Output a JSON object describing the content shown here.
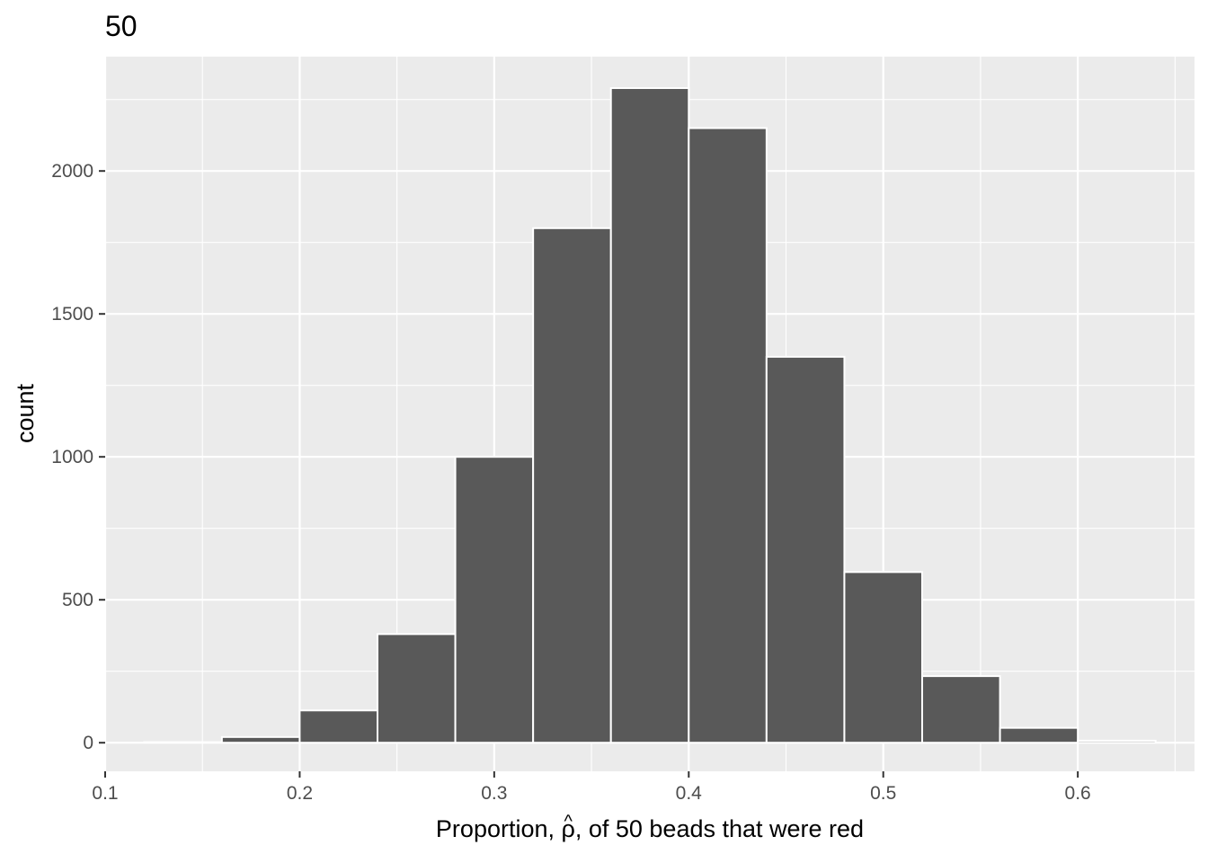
{
  "chart_data": {
    "type": "bar",
    "title": "50",
    "xlabel": {
      "before": "Proportion, ",
      "symbol": "ρ",
      "hat": "^",
      "after": ", of 50 beads that were red"
    },
    "ylabel": "count",
    "xlim": [
      0.1,
      0.66
    ],
    "ylim": [
      -100,
      2400
    ],
    "x_ticks": [
      {
        "value": 0.1,
        "label": "0.1"
      },
      {
        "value": 0.2,
        "label": "0.2"
      },
      {
        "value": 0.3,
        "label": "0.3"
      },
      {
        "value": 0.4,
        "label": "0.4"
      },
      {
        "value": 0.5,
        "label": "0.5"
      },
      {
        "value": 0.6,
        "label": "0.6"
      }
    ],
    "y_ticks": [
      {
        "value": 0,
        "label": "0"
      },
      {
        "value": 500,
        "label": "500"
      },
      {
        "value": 1000,
        "label": "1000"
      },
      {
        "value": 1500,
        "label": "1500"
      },
      {
        "value": 2000,
        "label": "2000"
      }
    ],
    "bins": [
      {
        "start": 0.12,
        "end": 0.16,
        "count": 2
      },
      {
        "start": 0.16,
        "end": 0.2,
        "count": 20
      },
      {
        "start": 0.2,
        "end": 0.24,
        "count": 113
      },
      {
        "start": 0.24,
        "end": 0.28,
        "count": 380
      },
      {
        "start": 0.28,
        "end": 0.32,
        "count": 1000
      },
      {
        "start": 0.32,
        "end": 0.36,
        "count": 1800
      },
      {
        "start": 0.36,
        "end": 0.4,
        "count": 2290
      },
      {
        "start": 0.4,
        "end": 0.44,
        "count": 2150
      },
      {
        "start": 0.44,
        "end": 0.48,
        "count": 1350
      },
      {
        "start": 0.48,
        "end": 0.52,
        "count": 597
      },
      {
        "start": 0.52,
        "end": 0.56,
        "count": 233
      },
      {
        "start": 0.56,
        "end": 0.6,
        "count": 52
      },
      {
        "start": 0.6,
        "end": 0.64,
        "count": 7
      }
    ],
    "colors": {
      "bar_fill": "#595959",
      "bar_outline": "#ffffff",
      "panel": "#ebebeb",
      "grid": "#ffffff"
    },
    "grid": true,
    "legend": "none"
  }
}
